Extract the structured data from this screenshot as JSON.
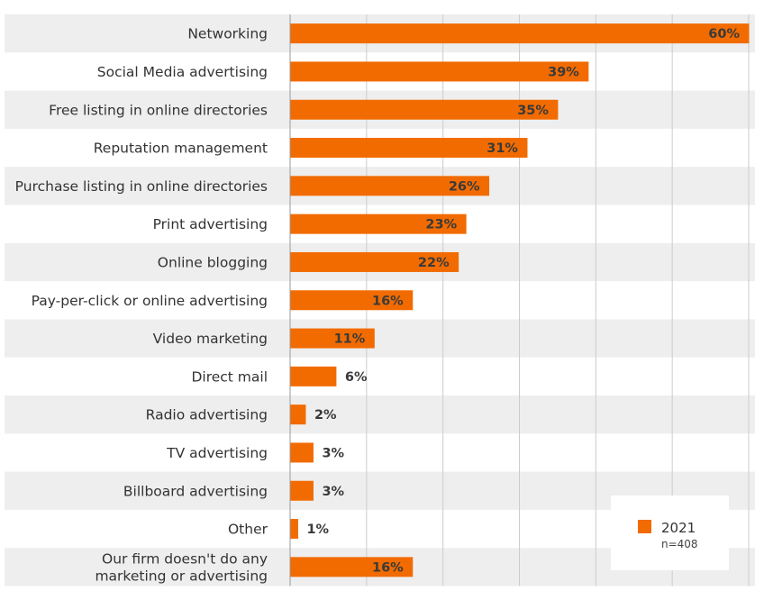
{
  "chart_data": {
    "type": "bar",
    "orientation": "horizontal",
    "categories": [
      "Networking",
      "Social Media advertising",
      "Free listing in online directories",
      "Reputation management",
      "Purchase listing in online directories",
      "Print advertising",
      "Online blogging",
      "Pay-per-click or online advertising",
      "Video marketing",
      "Direct mail",
      "Radio advertising",
      "TV advertising",
      "Billboard advertising",
      "Other",
      "Our firm doesn't do any marketing or advertising"
    ],
    "category_lines": [
      [
        "Networking"
      ],
      [
        "Social Media advertising"
      ],
      [
        "Free listing in online directories"
      ],
      [
        "Reputation management"
      ],
      [
        "Purchase listing in online directories"
      ],
      [
        "Print advertising"
      ],
      [
        "Online blogging"
      ],
      [
        "Pay-per-click or online advertising"
      ],
      [
        "Video marketing"
      ],
      [
        "Direct mail"
      ],
      [
        "Radio advertising"
      ],
      [
        "TV advertising"
      ],
      [
        "Billboard advertising"
      ],
      [
        "Other"
      ],
      [
        "Our firm doesn't do any",
        "marketing or advertising"
      ]
    ],
    "series": [
      {
        "name": "2021",
        "values": [
          60,
          39,
          35,
          31,
          26,
          23,
          22,
          16,
          11,
          6,
          2,
          3,
          3,
          1,
          16
        ],
        "labels": [
          "60%",
          "39%",
          "35%",
          "31%",
          "26%",
          "23%",
          "22%",
          "16%",
          "11%",
          "6%",
          "2%",
          "3%",
          "3%",
          "1%",
          "16%"
        ]
      }
    ],
    "xlim": [
      0,
      60
    ],
    "gridlines_at": [
      10,
      20,
      30,
      40,
      50,
      60
    ],
    "grid": true,
    "legend": {
      "position": "bottom-right",
      "entries": [
        "2021"
      ],
      "note": "n=408"
    }
  },
  "colors": {
    "bar": "#f26b00",
    "stripe": "#eeeeee",
    "grid": "#cccccc",
    "axis": "#999999"
  }
}
